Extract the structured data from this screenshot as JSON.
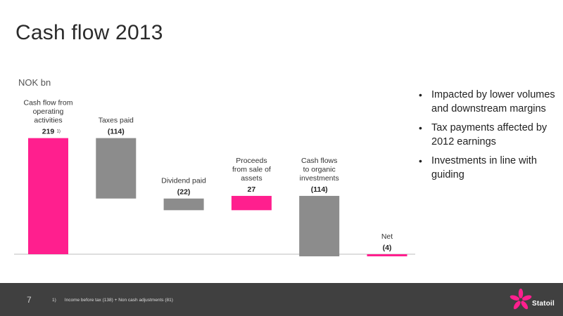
{
  "title": "Cash flow 2013",
  "unit_label": "NOK bn",
  "colors": {
    "inflow": "#ff1f8e",
    "outflow": "#8c8c8c",
    "axis": "#bdbdbd",
    "footer": "#404040"
  },
  "chart_data": {
    "type": "bar",
    "subtype": "waterfall",
    "categories": [
      "Cash flow from operating activities",
      "Taxes paid",
      "Dividend paid",
      "Proceeds from sale of assets",
      "Cash flows to organic investments",
      "Net"
    ],
    "values": [
      219,
      -114,
      -22,
      27,
      -114,
      -4
    ],
    "value_labels": [
      "219",
      "(114)",
      "(22)",
      "27",
      "(114)",
      "(4)"
    ],
    "category_lines": [
      [
        "Cash flow from",
        "operating",
        "activities"
      ],
      [
        "Taxes paid"
      ],
      [
        "Dividend paid"
      ],
      [
        "Proceeds",
        "from sale of",
        "assets"
      ],
      [
        "Cash flows",
        "to organic",
        "investments"
      ],
      [
        "Net"
      ]
    ],
    "bar_colors": [
      "inflow",
      "outflow",
      "outflow",
      "inflow",
      "outflow",
      "inflow"
    ],
    "annotations": [
      {
        "target": 0,
        "text": "1)"
      }
    ],
    "ylim": [
      -10,
      220
    ],
    "grid": false,
    "legend": "none"
  },
  "bullets": [
    "Impacted by lower volumes and downstream margins",
    "Tax payments affected by 2012 earnings",
    "Investments in line with guiding"
  ],
  "footer": {
    "page_number": "7",
    "footnote_marker": "1)",
    "footnote_text": "Income before tax (138) + Non cash adjustments (81)",
    "logo_text": "Statoil",
    "logo_icon": "star-flower-logo-icon"
  }
}
